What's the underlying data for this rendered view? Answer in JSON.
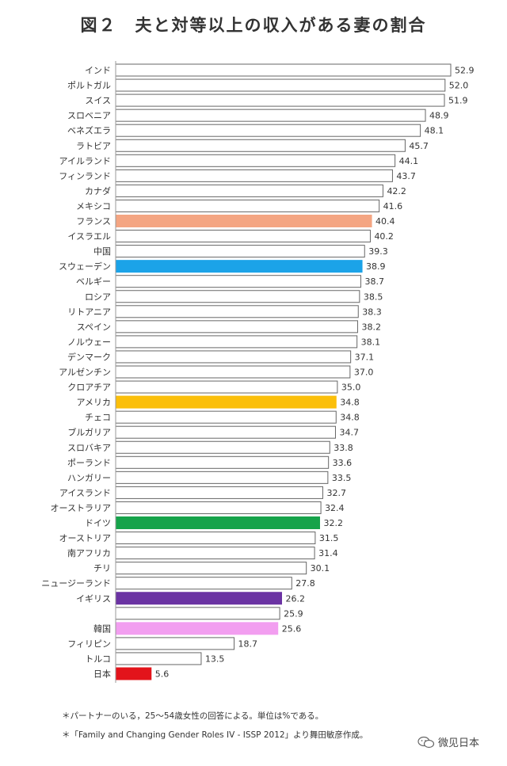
{
  "title": "図２　夫と対等以上の収入がある妻の割合",
  "chart_data": {
    "type": "bar",
    "orientation": "horizontal",
    "title": "図２　夫と対等以上の収入がある妻の割合",
    "xlim": [
      0,
      55
    ],
    "categories": [
      "インド",
      "ポルトガル",
      "スイス",
      "スロベニア",
      "ベネズエラ",
      "ラトビア",
      "アイルランド",
      "フィンランド",
      "カナダ",
      "メキシコ",
      "フランス",
      "イスラエル",
      "中国",
      "スウェーデン",
      "ベルギー",
      "ロシア",
      "リトアニア",
      "スペイン",
      "ノルウェー",
      "デンマーク",
      "アルゼンチン",
      "クロアチア",
      "アメリカ",
      "チェコ",
      "ブルガリア",
      "スロバキア",
      "ポーランド",
      "ハンガリー",
      "アイスランド",
      "オーストラリア",
      "ドイツ",
      "オーストリア",
      "南アフリカ",
      "チリ",
      "ニュージーランド",
      "イギリス",
      "",
      "韓国",
      "フィリピン",
      "トルコ",
      "日本"
    ],
    "values": [
      52.9,
      52.0,
      51.9,
      48.9,
      48.1,
      45.7,
      44.1,
      43.7,
      42.2,
      41.6,
      40.4,
      40.2,
      39.3,
      38.9,
      38.7,
      38.5,
      38.3,
      38.2,
      38.1,
      37.1,
      37.0,
      35.0,
      34.8,
      34.8,
      34.7,
      33.8,
      33.6,
      33.5,
      32.7,
      32.4,
      32.2,
      31.5,
      31.4,
      30.1,
      27.8,
      26.2,
      25.9,
      25.6,
      18.7,
      13.5,
      5.6
    ],
    "value_labels": [
      "52.9",
      "52.0",
      "51.9",
      "48.9",
      "48.1",
      "45.7",
      "44.1",
      "43.7",
      "42.2",
      "41.6",
      "40.4",
      "40.2",
      "39.3",
      "38.9",
      "38.7",
      "38.5",
      "38.3",
      "38.2",
      "38.1",
      "37.1",
      "37.0",
      "35.0",
      "34.8",
      "34.8",
      "34.7",
      "33.8",
      "33.6",
      "33.5",
      "32.7",
      "32.4",
      "32.2",
      "31.5",
      "31.4",
      "30.1",
      "27.8",
      "26.2",
      "25.9",
      "25.6",
      "18.7",
      "13.5",
      "5.6"
    ],
    "highlight_colors": {
      "フランス": "#f4a582",
      "スウェーデン": "#1ba3e8",
      "アメリカ": "#fbbf0a",
      "ドイツ": "#16a34a",
      "イギリス": "#6b33a3",
      "韓国": "#f29ef0",
      "日本": "#e3141b"
    },
    "default_bar_fill": "#ffffff",
    "bar_border": "#666666"
  },
  "notes": {
    "line1": "＊パートナーのいる，25～54歳女性の回答による。単位は%である。",
    "line2": "＊「Family and Changing Gender Roles IV - ISSP 2012」より舞田敏彦作成。"
  },
  "watermark": {
    "text": "微见日本",
    "icon": "wechat-icon"
  }
}
